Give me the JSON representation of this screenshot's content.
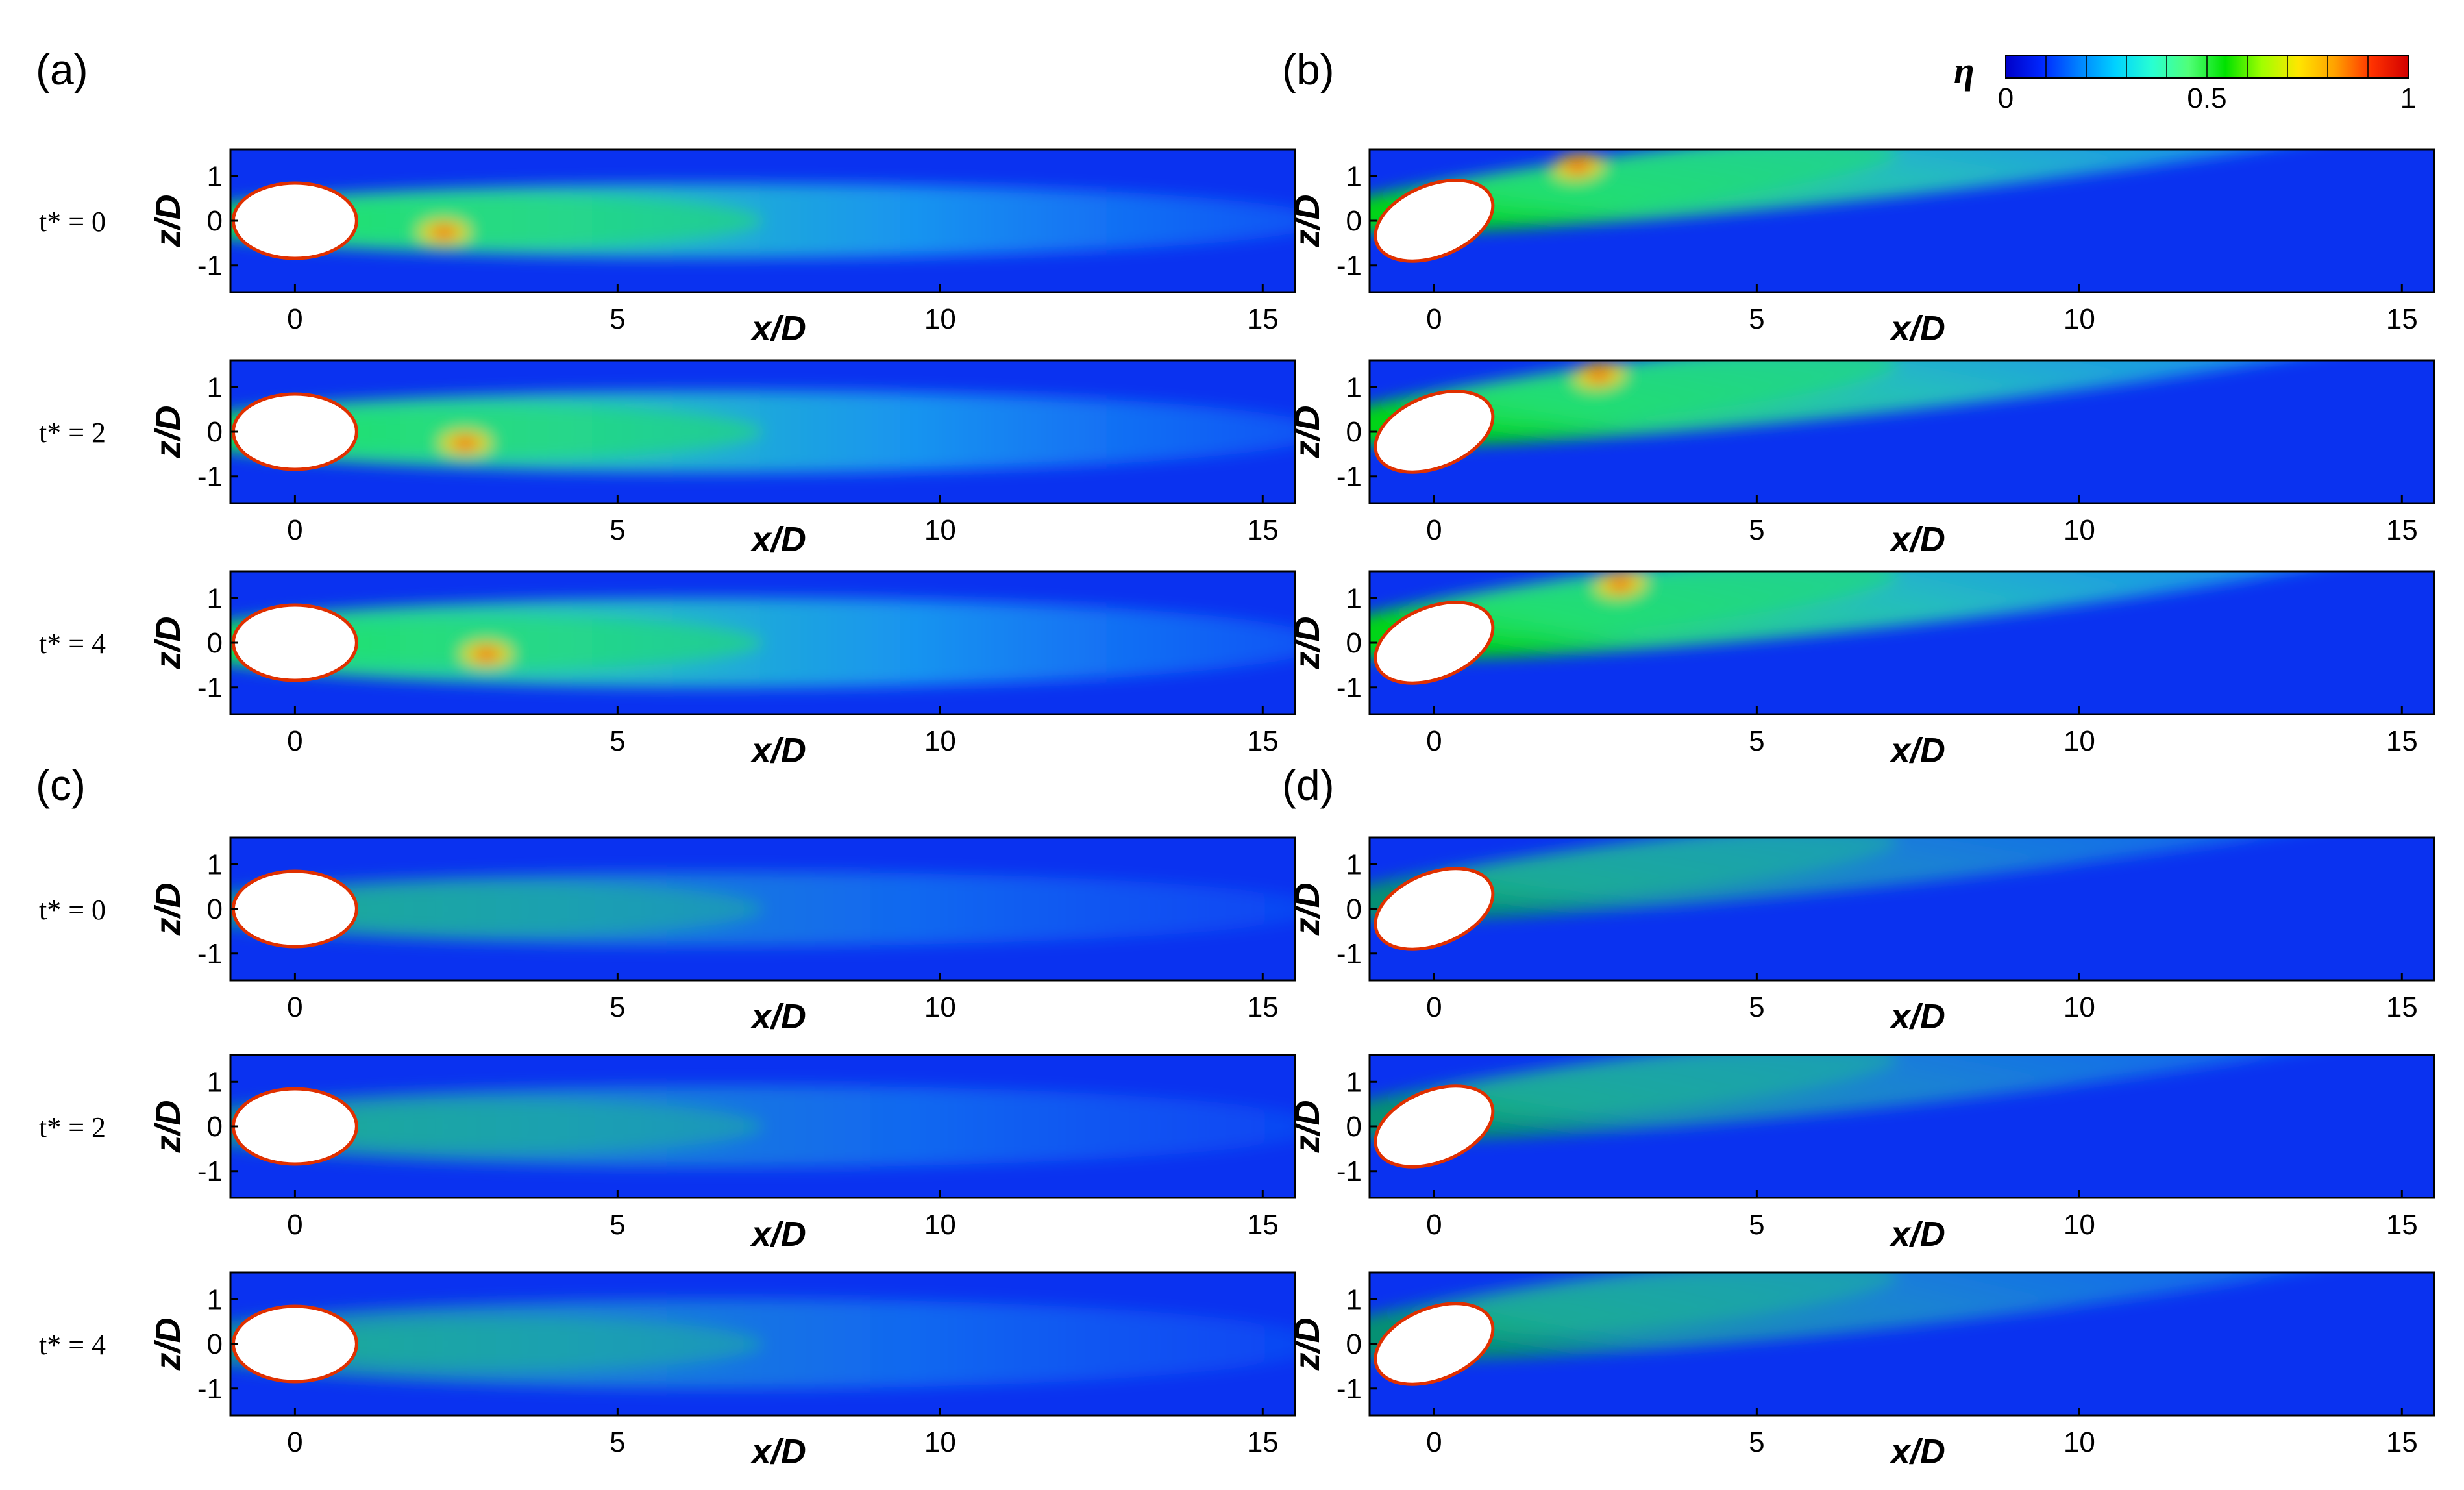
{
  "figure": {
    "colorbar": {
      "symbol": "η",
      "ticks": [
        "0",
        "0.5",
        "1"
      ],
      "range": [
        0,
        1
      ],
      "colors": [
        "#0000c8",
        "#0028ff",
        "#0082ff",
        "#00d2ff",
        "#28ffd2",
        "#50ff78",
        "#00e100",
        "#a0ff00",
        "#ffe600",
        "#ffa000",
        "#ff3200",
        "#d20000"
      ]
    },
    "axes": {
      "xlabel": "x/D",
      "ylabel": "z/D",
      "xticks": [
        "0",
        "5",
        "10",
        "15"
      ],
      "yticks": [
        "1",
        "0",
        "-1"
      ],
      "xlim": [
        -1,
        15.5
      ],
      "ylim": [
        -1.6,
        1.6
      ]
    },
    "panels": [
      {
        "label": "(a)",
        "case": "a",
        "tilt": 0,
        "intensity": 1.0,
        "rows": [
          {
            "t_label": "t* = 0"
          },
          {
            "t_label": "t* = 2"
          },
          {
            "t_label": "t* = 4"
          }
        ]
      },
      {
        "label": "(b)",
        "case": "b",
        "tilt": 1,
        "intensity": 0.95,
        "rows": [
          {
            "t_label": ""
          },
          {
            "t_label": ""
          },
          {
            "t_label": ""
          }
        ]
      },
      {
        "label": "(c)",
        "case": "c",
        "tilt": 0,
        "intensity": 0.55,
        "rows": [
          {
            "t_label": "t* = 0"
          },
          {
            "t_label": "t* = 2"
          },
          {
            "t_label": "t* = 4"
          }
        ]
      },
      {
        "label": "(d)",
        "case": "d",
        "tilt": 1,
        "intensity": 0.55,
        "rows": [
          {
            "t_label": ""
          },
          {
            "t_label": ""
          },
          {
            "t_label": ""
          }
        ]
      }
    ]
  }
}
